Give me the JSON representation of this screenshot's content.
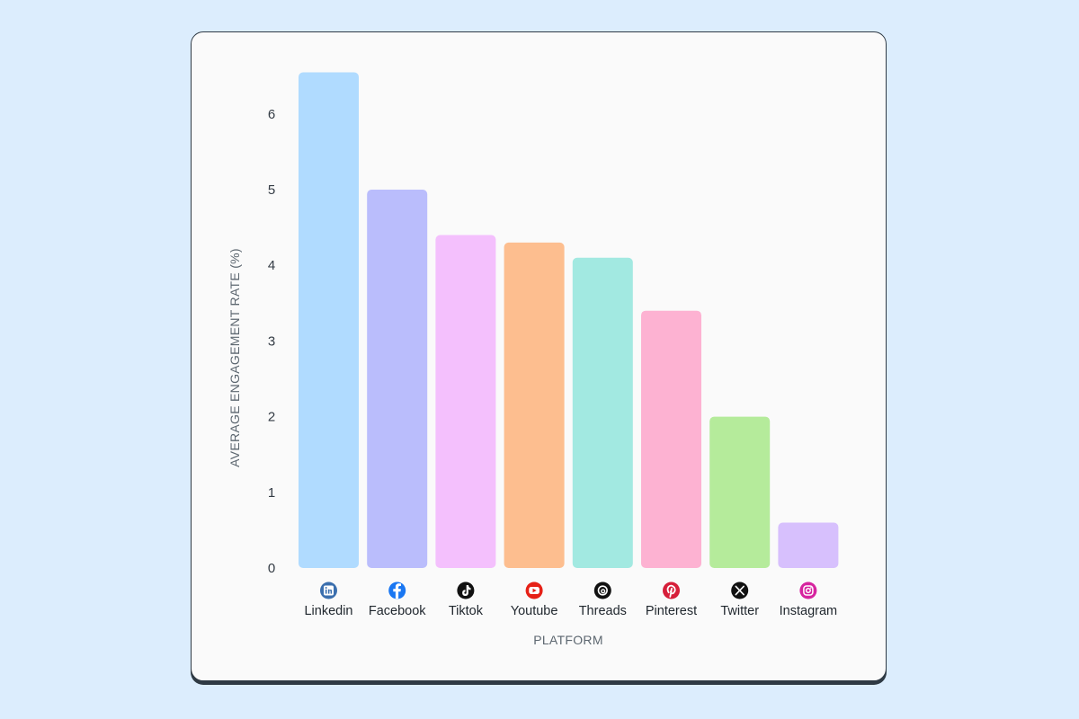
{
  "chart_data": {
    "type": "bar",
    "title": "",
    "xlabel": "PLATFORM",
    "ylabel": "AVERAGE ENGAGEMENT RATE (%)",
    "ylim": [
      0,
      6.6
    ],
    "yticks": [
      0,
      1,
      2,
      3,
      4,
      5,
      6
    ],
    "grid": false,
    "categories": [
      "Linkedin",
      "Facebook",
      "Tiktok",
      "Youtube",
      "Threads",
      "Pinterest",
      "Twitter",
      "Instagram"
    ],
    "values": [
      6.55,
      5.0,
      4.4,
      4.3,
      4.1,
      3.4,
      2.0,
      0.6
    ],
    "bar_colors": [
      "#b0dbff",
      "#babdfc",
      "#f4c0fd",
      "#fdbe8f",
      "#a2e9e1",
      "#fdb2d2",
      "#b5eb9b",
      "#d7c0fd"
    ],
    "icons": [
      {
        "name": "linkedin-icon",
        "color": "#3b6fae"
      },
      {
        "name": "facebook-icon",
        "color": "#1a77f2"
      },
      {
        "name": "tiktok-icon",
        "color": "#111111"
      },
      {
        "name": "youtube-icon",
        "color": "#e62117"
      },
      {
        "name": "threads-icon",
        "color": "#111111"
      },
      {
        "name": "pinterest-icon",
        "color": "#d61f3a"
      },
      {
        "name": "twitter-x-icon",
        "color": "#111111"
      },
      {
        "name": "instagram-icon",
        "color": "#d6249f"
      }
    ]
  }
}
